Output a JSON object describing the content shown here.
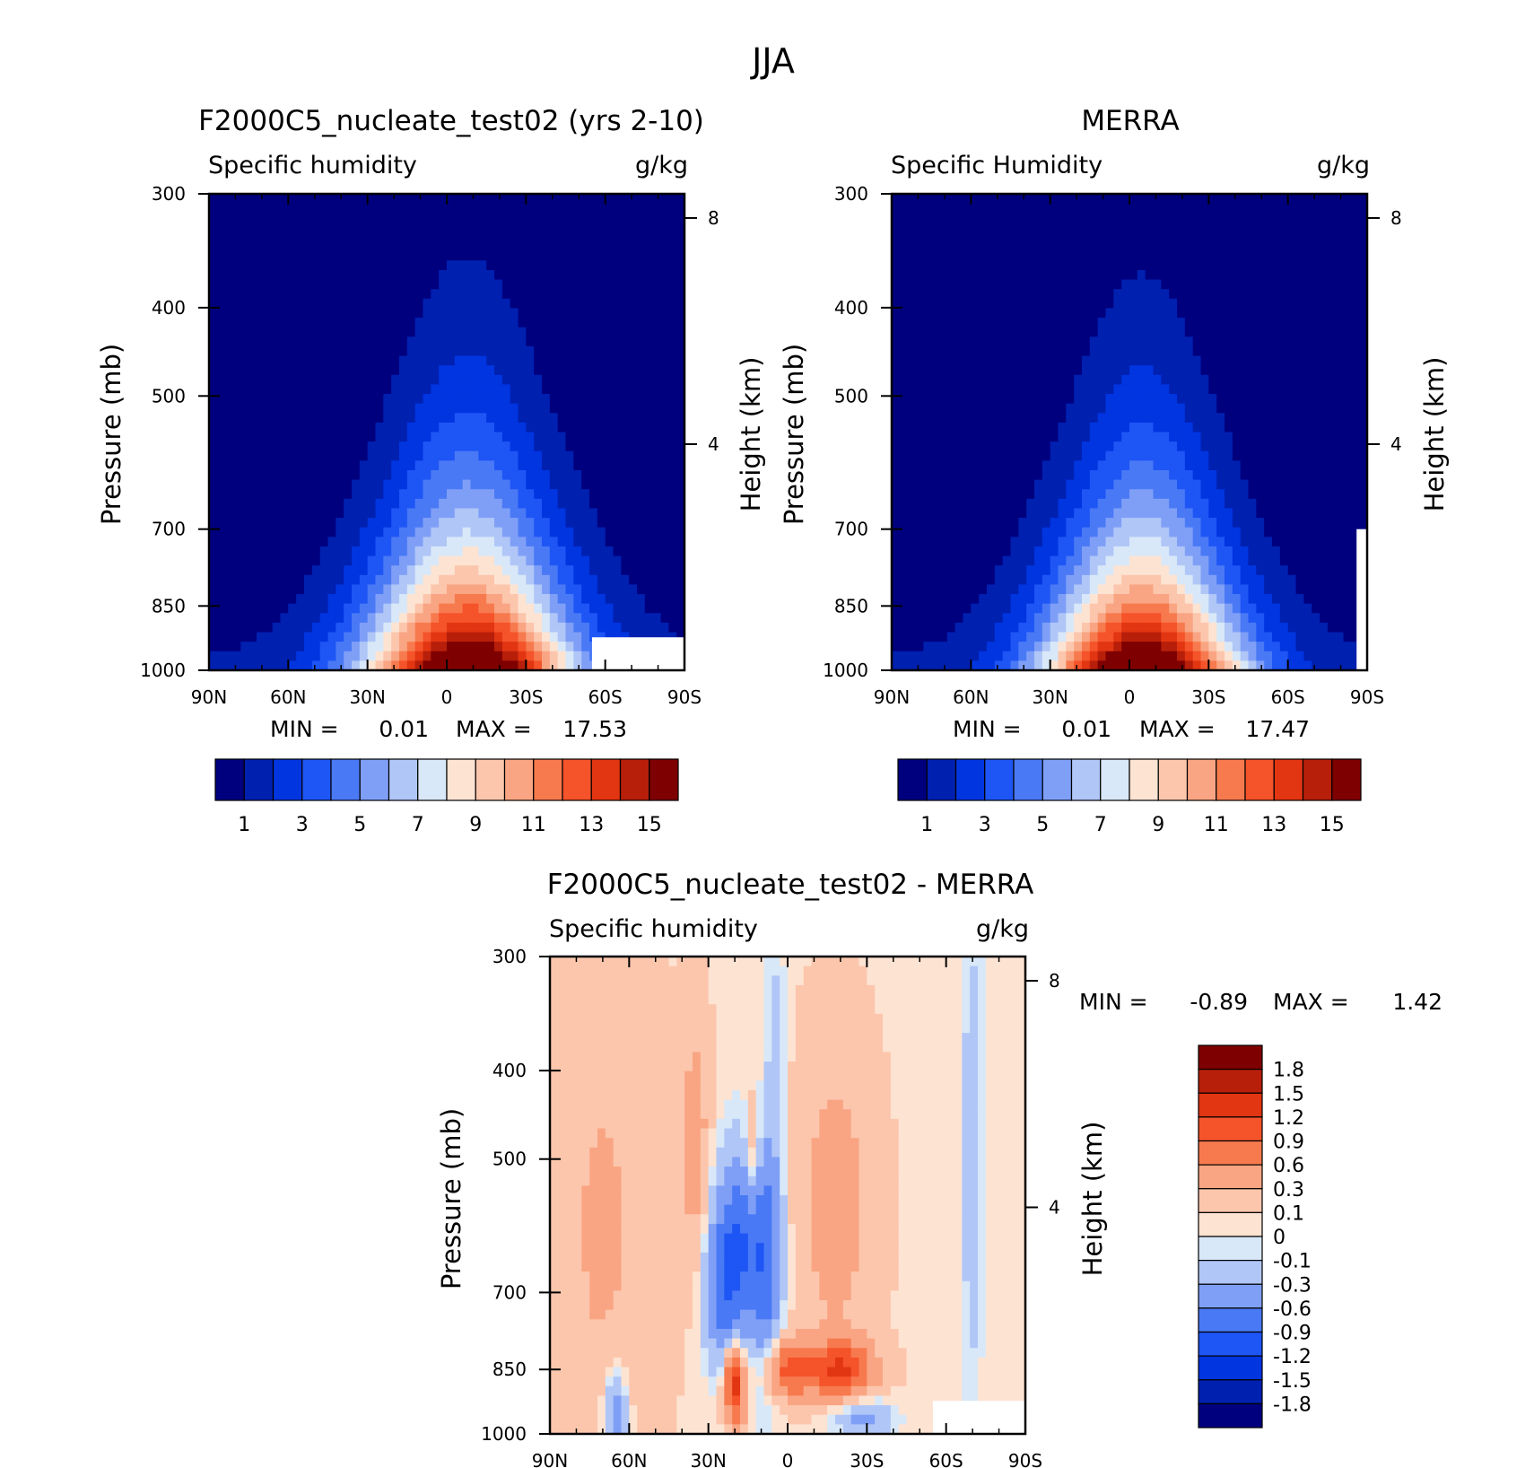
{
  "figure_title": "JJA",
  "chart_data": [
    {
      "type": "heatmap",
      "id": "model",
      "title": "F2000C5_nucleate_test02 (yrs 2-10)",
      "left_subtitle": "Specific humidity",
      "right_subtitle": "g/kg",
      "xlabel": "",
      "ylabel": "Pressure (mb)",
      "ylabel_right": "Height (km)",
      "x_ticks": [
        "90N",
        "60N",
        "30N",
        "0",
        "30S",
        "60S",
        "90S"
      ],
      "y_ticks": [
        "300",
        "400",
        "500",
        "700",
        "850",
        "1000"
      ],
      "y_ticks_right": [
        "8",
        "4"
      ],
      "xlim": [
        90,
        -90
      ],
      "ylim": [
        1000,
        300
      ],
      "y_scale": "log",
      "grid": false,
      "min_label": "MIN =",
      "min_value": "0.01",
      "max_label": "MAX =",
      "max_value": "17.53",
      "min": 0.01,
      "max": 17.53,
      "colorbar": {
        "orientation": "horizontal",
        "colors": [
          "#00007f",
          "#0020b0",
          "#0035e0",
          "#1e55f5",
          "#4a79f5",
          "#7f9ff7",
          "#b0c6f7",
          "#d8e8f8",
          "#fde3d2",
          "#fcc6ad",
          "#f9a583",
          "#f77a4e",
          "#f5532a",
          "#e23512",
          "#b71f0a",
          "#7f0000"
        ],
        "labels": [
          "1",
          "3",
          "5",
          "7",
          "9",
          "11",
          "13",
          "15"
        ]
      },
      "field": {
        "peak_lat": -8,
        "peak_value": 17.5,
        "scale_height_km": 2.5,
        "lat_width": 38,
        "south_cutoff_lat": -55,
        "south_cutoff_pressure": 920
      }
    },
    {
      "type": "heatmap",
      "id": "obs",
      "title": "MERRA",
      "left_subtitle": "Specific Humidity",
      "right_subtitle": "g/kg",
      "xlabel": "",
      "ylabel": "Pressure (mb)",
      "ylabel_right": "Height (km)",
      "x_ticks": [
        "90N",
        "60N",
        "30N",
        "0",
        "30S",
        "60S",
        "90S"
      ],
      "y_ticks": [
        "300",
        "400",
        "500",
        "700",
        "850",
        "1000"
      ],
      "y_ticks_right": [
        "8",
        "4"
      ],
      "xlim": [
        90,
        -90
      ],
      "ylim": [
        1000,
        300
      ],
      "y_scale": "log",
      "grid": false,
      "min_label": "MIN =",
      "min_value": "0.01",
      "max_label": "MAX =",
      "max_value": "17.47",
      "min": 0.01,
      "max": 17.47,
      "colorbar": {
        "orientation": "horizontal",
        "colors": [
          "#00007f",
          "#0020b0",
          "#0035e0",
          "#1e55f5",
          "#4a79f5",
          "#7f9ff7",
          "#b0c6f7",
          "#d8e8f8",
          "#fde3d2",
          "#fcc6ad",
          "#f9a583",
          "#f77a4e",
          "#f5532a",
          "#e23512",
          "#b71f0a",
          "#7f0000"
        ],
        "labels": [
          "1",
          "3",
          "5",
          "7",
          "9",
          "11",
          "13",
          "15"
        ]
      },
      "field": {
        "peak_lat": -5,
        "peak_value": 17.4,
        "scale_height_km": 2.4,
        "lat_width": 36,
        "south_cutoff_lat": -86,
        "south_cutoff_pressure": 700
      }
    },
    {
      "type": "heatmap",
      "id": "diff",
      "title": "F2000C5_nucleate_test02 - MERRA",
      "left_subtitle": "Specific humidity",
      "right_subtitle": "g/kg",
      "xlabel": "",
      "ylabel": "Pressure (mb)",
      "ylabel_right": "Height (km)",
      "x_ticks": [
        "90N",
        "60N",
        "30N",
        "0",
        "30S",
        "60S",
        "90S"
      ],
      "y_ticks": [
        "300",
        "400",
        "500",
        "700",
        "850",
        "1000"
      ],
      "y_ticks_right": [
        "8",
        "4"
      ],
      "xlim": [
        90,
        -90
      ],
      "ylim": [
        1000,
        300
      ],
      "y_scale": "log",
      "grid": false,
      "min_label": "MIN =",
      "min_value": "-0.89",
      "max_label": "MAX =",
      "max_value": "1.42",
      "min": -0.89,
      "max": 1.42,
      "colorbar": {
        "orientation": "vertical",
        "colors": [
          "#7f0000",
          "#b71f0a",
          "#e23512",
          "#f5532a",
          "#f77a4e",
          "#f9a583",
          "#fcc6ad",
          "#fde3d2",
          "#d8e8f8",
          "#b0c6f7",
          "#7f9ff7",
          "#4a79f5",
          "#1e55f5",
          "#0035e0",
          "#0020b0",
          "#00007f"
        ],
        "labels": [
          "1.8",
          "1.5",
          "1.2",
          "0.9",
          "0.6",
          "0.3",
          "0.1",
          "0",
          "-0.1",
          "-0.3",
          "-0.6",
          "-0.9",
          "-1.2",
          "-1.5",
          "-1.8"
        ]
      },
      "blobs": [
        {
          "lat": 18,
          "p": 620,
          "amp": -0.85,
          "wlat": 9,
          "wp": 0.25
        },
        {
          "lat": 8,
          "p": 640,
          "amp": -0.7,
          "wlat": 6,
          "wp": 0.3
        },
        {
          "lat": 25,
          "p": 700,
          "amp": -0.6,
          "wlat": 7,
          "wp": 0.2
        },
        {
          "lat": 5,
          "p": 360,
          "amp": -0.2,
          "wlat": 4,
          "wp": 0.5
        },
        {
          "lat": 20,
          "p": 880,
          "amp": 1.4,
          "wlat": 4,
          "wp": 0.1
        },
        {
          "lat": -20,
          "p": 850,
          "amp": 1.1,
          "wlat": 12,
          "wp": 0.07
        },
        {
          "lat": 0,
          "p": 850,
          "amp": 0.9,
          "wlat": 9,
          "wp": 0.07
        },
        {
          "lat": -18,
          "p": 560,
          "amp": 0.35,
          "wlat": 14,
          "wp": 0.4
        },
        {
          "lat": 35,
          "p": 480,
          "amp": 0.4,
          "wlat": 5,
          "wp": 0.3
        },
        {
          "lat": 13,
          "p": 500,
          "amp": 0.45,
          "wlat": 3,
          "wp": 0.15
        },
        {
          "lat": 65,
          "p": 950,
          "amp": -0.6,
          "wlat": 5,
          "wp": 0.12
        },
        {
          "lat": -28,
          "p": 960,
          "amp": -0.5,
          "wlat": 12,
          "wp": 0.05
        },
        {
          "lat": -70,
          "p": 500,
          "amp": -0.35,
          "wlat": 4,
          "wp": 0.6
        },
        {
          "lat": 70,
          "p": 600,
          "amp": 0.25,
          "wlat": 20,
          "wp": 0.7
        }
      ],
      "base_value": 0.08,
      "field": {
        "south_cutoff_lat": -55,
        "south_cutoff_pressure": 920
      }
    }
  ]
}
